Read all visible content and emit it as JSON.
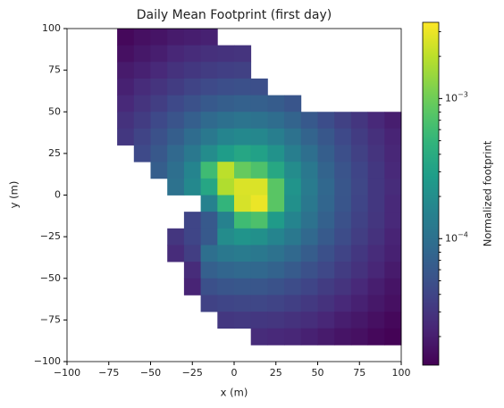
{
  "chart_data": {
    "type": "heatmap",
    "title": "Daily Mean Footprint (first day)",
    "x_label": "x (m)",
    "y_label": "y (m)",
    "colorbar_label": "Normalized footprint",
    "colormap": "viridis",
    "log_color": true,
    "clim": [
      1.25e-05,
      0.0035
    ],
    "xlim": [
      -100,
      100
    ],
    "ylim": [
      -100,
      100
    ],
    "xticks": [
      {
        "value": -100,
        "label": "−100"
      },
      {
        "value": -75,
        "label": "−75"
      },
      {
        "value": -50,
        "label": "−50"
      },
      {
        "value": -25,
        "label": "−25"
      },
      0,
      25,
      50,
      75,
      100
    ],
    "yticks": [
      {
        "value": -100,
        "label": "−100"
      },
      {
        "value": -75,
        "label": "−75"
      },
      {
        "value": -50,
        "label": "−50"
      },
      {
        "value": -25,
        "label": "−25"
      },
      0,
      25,
      50,
      75,
      100
    ],
    "cticks": [
      {
        "value": 0.0001,
        "label": "10−4"
      },
      {
        "value": 0.001,
        "label": "10−3"
      }
    ],
    "cminor_ticks": [
      2e-05,
      3e-05,
      4e-05,
      5e-05,
      6e-05,
      7e-05,
      8e-05,
      9e-05,
      0.0002,
      0.0003,
      0.0004,
      0.0005,
      0.0006,
      0.0007,
      0.0008,
      0.0009,
      0.002,
      0.003
    ],
    "z": [
      [
        null,
        null,
        null,
        1.4e-05,
        1.6e-05,
        1.7e-05,
        1.9e-05,
        2e-05,
        2.1e-05,
        null,
        null,
        null,
        null,
        null,
        null,
        null,
        null,
        null,
        null,
        null
      ],
      [
        null,
        null,
        null,
        1.6e-05,
        1.8e-05,
        2e-05,
        2.3e-05,
        2.5e-05,
        2.7e-05,
        2.8e-05,
        2.9e-05,
        null,
        null,
        null,
        null,
        null,
        null,
        null,
        null,
        null
      ],
      [
        null,
        null,
        null,
        1.9e-05,
        2.1e-05,
        2.4e-05,
        2.8e-05,
        3.1e-05,
        3.4e-05,
        3.6e-05,
        3.7e-05,
        null,
        null,
        null,
        null,
        null,
        null,
        null,
        null,
        null
      ],
      [
        null,
        null,
        null,
        2.1e-05,
        2.5e-05,
        2.9e-05,
        3.4e-05,
        3.9e-05,
        4.4e-05,
        4.8e-05,
        5e-05,
        4.9e-05,
        null,
        null,
        null,
        null,
        null,
        null,
        null,
        null
      ],
      [
        null,
        null,
        null,
        2.4e-05,
        2.9e-05,
        3.5e-05,
        4.3e-05,
        5.1e-05,
        6e-05,
        6.7e-05,
        7.1e-05,
        6.9e-05,
        6.3e-05,
        5.5e-05,
        null,
        null,
        null,
        null,
        null,
        null
      ],
      [
        null,
        null,
        null,
        2.8e-05,
        3.4e-05,
        4.3e-05,
        5.4e-05,
        6.8e-05,
        8.5e-05,
        0.0001,
        0.00011,
        0.000105,
        9.2e-05,
        7.5e-05,
        6e-05,
        4.7e-05,
        3.7e-05,
        3e-05,
        2.4e-05,
        2e-05
      ],
      [
        null,
        null,
        null,
        3.1e-05,
        3.9e-05,
        5.1e-05,
        6.7e-05,
        9.1e-05,
        0.00012,
        0.00016,
        0.000175,
        0.00017,
        0.00014,
        0.000105,
        7.6e-05,
        5.7e-05,
        4.3e-05,
        3.4e-05,
        2.7e-05,
        2.2e-05
      ],
      [
        null,
        null,
        null,
        null,
        4.4e-05,
        5.9e-05,
        8.3e-05,
        0.00012,
        0.00019,
        0.00028,
        0.00035,
        0.00031,
        0.00022,
        0.00014,
        9.7e-05,
        6.7e-05,
        4.9e-05,
        3.7e-05,
        2.9e-05,
        2.3e-05
      ],
      [
        null,
        null,
        null,
        null,
        null,
        6.6e-05,
        9.7e-05,
        0.00016,
        0.0006,
        0.002,
        0.00091,
        0.00071,
        0.00036,
        0.00019,
        0.00012,
        7.6e-05,
        5.4e-05,
        4e-05,
        3.1e-05,
        2.4e-05
      ],
      [
        null,
        null,
        null,
        null,
        null,
        null,
        0.000105,
        0.000175,
        0.00035,
        0.0018,
        0.0026,
        0.0026,
        0.0008,
        0.00023,
        0.00013,
        8.1e-05,
        5.6e-05,
        4.1e-05,
        3.1e-05,
        2.5e-05
      ],
      [
        null,
        null,
        null,
        null,
        null,
        null,
        null,
        null,
        0.00015,
        0.0005,
        0.0025,
        0.003,
        0.0008,
        0.00021,
        0.00012,
        7.9e-05,
        5.5e-05,
        4e-05,
        3.1e-05,
        2.4e-05
      ],
      [
        null,
        null,
        null,
        null,
        null,
        null,
        null,
        4e-05,
        6e-05,
        0.00015,
        0.0006,
        0.0007,
        0.00027,
        0.00016,
        0.000105,
        7.1e-05,
        5.1e-05,
        3.8e-05,
        3e-05,
        2.4e-05
      ],
      [
        null,
        null,
        null,
        null,
        null,
        null,
        3e-05,
        4e-05,
        6e-05,
        0.00019,
        0.00023,
        0.00021,
        0.00016,
        0.00012,
        8.4e-05,
        6.1e-05,
        4.6e-05,
        3.5e-05,
        2.8e-05,
        2.2e-05
      ],
      [
        null,
        null,
        null,
        null,
        null,
        null,
        2.5e-05,
        3.5e-05,
        9.7e-05,
        0.00012,
        0.00013,
        0.00012,
        0.000105,
        8.4e-05,
        6.5e-05,
        5e-05,
        3.9e-05,
        3.1e-05,
        2.5e-05,
        2.1e-05
      ],
      [
        null,
        null,
        null,
        null,
        null,
        null,
        null,
        2.5e-05,
        6.9e-05,
        7.8e-05,
        8.3e-05,
        8.1e-05,
        7.3e-05,
        6.2e-05,
        5.1e-05,
        4.2e-05,
        3.4e-05,
        2.8e-05,
        2.3e-05,
        1.9e-05
      ],
      [
        null,
        null,
        null,
        null,
        null,
        null,
        null,
        2.2e-05,
        5e-05,
        5.5e-05,
        5.7e-05,
        5.6e-05,
        5.2e-05,
        4.6e-05,
        4e-05,
        3.4e-05,
        2.9e-05,
        2.4e-05,
        2e-05,
        1.7e-05
      ],
      [
        null,
        null,
        null,
        null,
        null,
        null,
        null,
        null,
        3.8e-05,
        4e-05,
        4.1e-05,
        4.1e-05,
        3.9e-05,
        3.6e-05,
        3.2e-05,
        2.8e-05,
        2.4e-05,
        2.1e-05,
        1.8e-05,
        1.6e-05
      ],
      [
        null,
        null,
        null,
        null,
        null,
        null,
        null,
        null,
        null,
        3.1e-05,
        3.2e-05,
        3.1e-05,
        3e-05,
        2.8e-05,
        2.6e-05,
        2.3e-05,
        2e-05,
        1.8e-05,
        1.6e-05,
        1.4e-05
      ],
      [
        null,
        null,
        null,
        null,
        null,
        null,
        null,
        null,
        null,
        null,
        null,
        2.5e-05,
        2.4e-05,
        2.3e-05,
        2.1e-05,
        1.9e-05,
        1.7e-05,
        1.6e-05,
        1.4e-05,
        1.3e-05
      ],
      [
        null,
        null,
        null,
        null,
        null,
        null,
        null,
        null,
        null,
        null,
        null,
        null,
        null,
        null,
        null,
        null,
        null,
        null,
        null,
        null
      ]
    ]
  }
}
